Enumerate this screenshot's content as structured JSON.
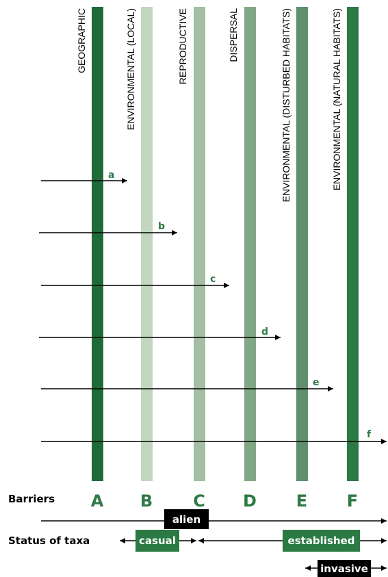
{
  "colors": {
    "bar_A": "#1f6b38",
    "bar_B": "#c2d6c0",
    "bar_C": "#a3bea3",
    "bar_D": "#80a886",
    "bar_E": "#5f8f6c",
    "bar_F": "#2b7a43",
    "green_text": "#2e7a45",
    "casual_box": "#2b7a43",
    "established_box": "#2b7a43",
    "alien_box": "#000000",
    "invasive_box": "#000000"
  },
  "barriers": [
    {
      "letter": "A",
      "label": "GEOGRAPHIC"
    },
    {
      "letter": "B",
      "label": "ENVIRONMENTAL (LOCAL)"
    },
    {
      "letter": "C",
      "label": "REPRODUCTIVE"
    },
    {
      "letter": "D",
      "label": "DISPERSAL"
    },
    {
      "letter": "E",
      "label": "ENVIRONMENTAL (DISTURBED HABITATS)"
    },
    {
      "letter": "F",
      "label": "ENVIRONMENTAL (NATURAL HABITATS)"
    }
  ],
  "arrows": [
    {
      "letter": "a"
    },
    {
      "letter": "b"
    },
    {
      "letter": "c"
    },
    {
      "letter": "d"
    },
    {
      "letter": "e"
    },
    {
      "letter": "f"
    }
  ],
  "rows": {
    "barriers_label": "Barriers",
    "status_label": "Status of taxa"
  },
  "status": {
    "alien": "alien",
    "casual": "casual",
    "established": "established",
    "invasive": "invasive"
  }
}
